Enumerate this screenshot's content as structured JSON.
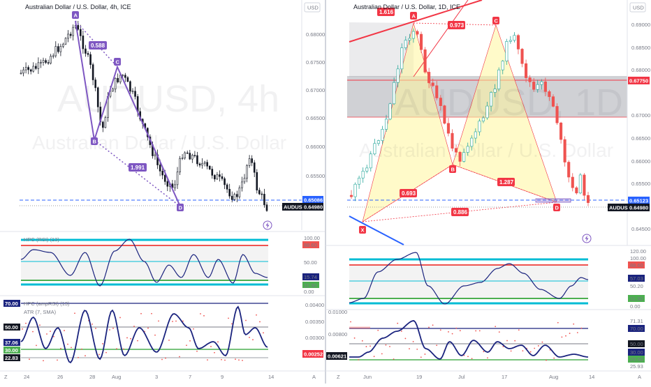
{
  "colors": {
    "up": "#26a69a",
    "down": "#ef5350",
    "candle": "#131722",
    "purple": "#7e57c2",
    "pattern_red": "#f23645",
    "yellow_fill": "#fff59d",
    "blue_dash": "#2962ff",
    "cyan": "#00bcd4",
    "green": "#4caf50",
    "navy": "#1a237e",
    "gray_zone": "#9e9e9e"
  },
  "left": {
    "title": "Australian Dollar / U.S. Dollar, 4h, ICE",
    "currency": "USD",
    "watermark_symbol": "AUDUSD, 4h",
    "watermark_name": "Australian Dollar / U.S. Dollar",
    "price_ticks": [
      "0.68000",
      "0.67500",
      "0.67000",
      "0.66500",
      "0.66000",
      "0.65500",
      "0.65000"
    ],
    "price_tag_blue": "0.65086",
    "symbol_tag": "AUDUSD",
    "last_price": "0.64980",
    "points": {
      "A": "A",
      "B": "B",
      "C": "C",
      "D": "D"
    },
    "ratios": [
      "0.588",
      "1.991"
    ],
    "rsi_title": "HPC (RSI) (13)",
    "rsi_levels": [
      "100.00",
      "88.60",
      "50.00",
      "15.74",
      "11.30",
      "0.00"
    ],
    "atr_title_1": "HPC (ampRSI) (13)",
    "atr_title_2": "ATR (7, SMA)",
    "atr_left_labels": [
      "70.00",
      "50.00",
      "37.06",
      "30.00",
      "22.83"
    ],
    "atr_ticks": [
      "0.00400",
      "0.00350",
      "0.00300",
      "0.00250"
    ],
    "atr_last": "0.00252",
    "x_labels": [
      "24",
      "26",
      "28",
      "Aug",
      "3",
      "7",
      "9",
      "14"
    ],
    "corner_left": "Z",
    "corner_right": "A"
  },
  "right": {
    "title": "Australian Dollar / U.S. Dollar, 1D, ICE",
    "currency": "USD",
    "watermark_symbol": "AUDUSD, 1D",
    "watermark_name": "Australian Dollar / U.S. Dollar",
    "price_ticks": [
      "0.69000",
      "0.68500",
      "0.68000",
      "0.67500",
      "0.67000",
      "0.66500",
      "0.66000",
      "0.65500",
      "0.65000",
      "0.64500"
    ],
    "price_tag_red": "0.67750",
    "price_tag_blue": "0.65123",
    "symbol_tag": "AUDUSD",
    "last_price": "0.64980",
    "points": {
      "X": "X",
      "A": "A",
      "B": "B",
      "C": "C",
      "D": "D"
    },
    "ratios": {
      "xa": "1.616",
      "ab": "0.973",
      "xb": "0.693",
      "bc_d": "1.287",
      "xd": "0.886"
    },
    "rsi_levels": [
      "120.00",
      "100.00",
      "88.60",
      "57.03",
      "50.20",
      "11.30",
      "0.00"
    ],
    "atr_ticks": [
      "0.01000",
      "0.00800",
      "0.00621"
    ],
    "atr_left_label": "0.00621",
    "atr_right_labels": [
      "71.31",
      "70.00",
      "50.00",
      "30.00",
      "29.50",
      "25.93"
    ],
    "x_labels": [
      "Jun",
      "19",
      "Jul",
      "17",
      "Aug",
      "14"
    ],
    "corner_left": "Z",
    "corner_right": "A"
  },
  "chart_data": [
    {
      "type": "candlestick",
      "title": "Australian Dollar / U.S. Dollar, 4h, ICE",
      "ylim": [
        0.6475,
        0.6825
      ],
      "x": [
        "24",
        "26",
        "28",
        "Aug",
        "3",
        "7",
        "9",
        "14"
      ],
      "harmonic_points": {
        "A": 0.683,
        "B": 0.6627,
        "C": 0.6745,
        "D": 0.65
      },
      "ratios": [
        0.588,
        1.991
      ],
      "last_price": 0.6498,
      "lines": [
        0.65086
      ]
    },
    {
      "type": "candlestick",
      "title": "Australian Dollar / U.S. Dollar, 1D, ICE",
      "ylim": [
        0.642,
        0.6915
      ],
      "x": [
        "Jun",
        "19",
        "Jul",
        "17",
        "Aug",
        "14"
      ],
      "harmonic_points": {
        "X": 0.647,
        "A": 0.69,
        "B": 0.66,
        "C": 0.6895,
        "D": 0.6505
      },
      "ratios": {
        "XA": 1.616,
        "AB": 0.973,
        "XB": 0.693,
        "BD": 1.287,
        "XD": 0.886
      },
      "zone": [
        0.67,
        0.679
      ],
      "last_price": 0.6498,
      "lines": [
        0.6775,
        0.65123
      ]
    }
  ]
}
